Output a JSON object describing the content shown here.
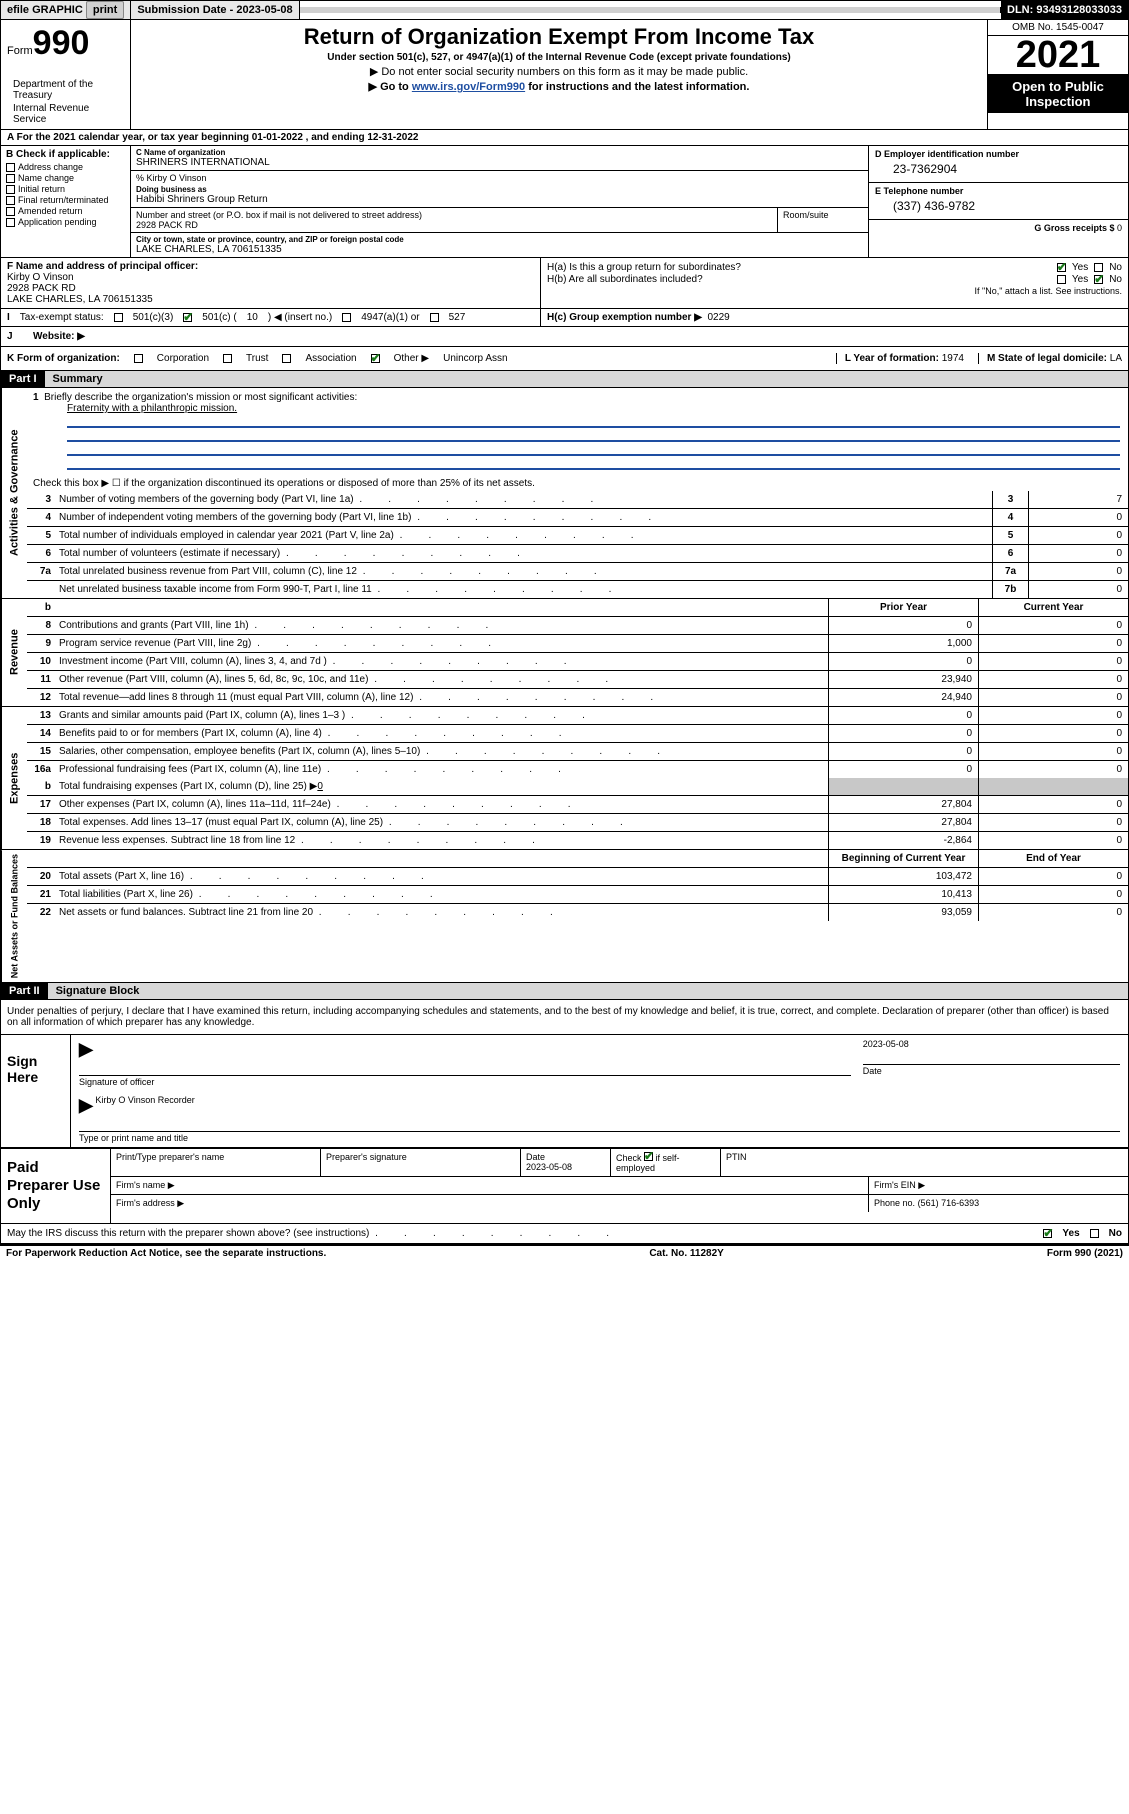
{
  "topbar": {
    "efile": "efile GRAPHIC",
    "print": "print",
    "sub_label": "Submission Date",
    "sub_date": "- 2023-05-08",
    "dln_label": "DLN:",
    "dln": "93493128033033"
  },
  "header": {
    "form_label": "Form",
    "form_no": "990",
    "title": "Return of Organization Exempt From Income Tax",
    "sub1": "Under section 501(c), 527, or 4947(a)(1) of the Internal Revenue Code (except private foundations)",
    "sub2": "▶ Do not enter social security numbers on this form as it may be made public.",
    "sub3_a": "▶ Go to ",
    "sub3_link": "www.irs.gov/Form990",
    "sub3_b": " for instructions and the latest information.",
    "omb": "OMB No. 1545-0047",
    "year": "2021",
    "oip": "Open to Public Inspection",
    "dept": "Department of the Treasury",
    "irs": "Internal Revenue Service"
  },
  "lineA": {
    "text_a": "A For the 2021 calendar year, or tax year beginning ",
    "begin": "01-01-2022",
    "text_b": " , and ending ",
    "end": "12-31-2022"
  },
  "colB": {
    "hdr": "B Check if applicable:",
    "opts": [
      "Address change",
      "Name change",
      "Initial return",
      "Final return/terminated",
      "Amended return",
      "Application pending"
    ]
  },
  "colC": {
    "name_lbl": "C Name of organization",
    "name": "SHRINERS INTERNATIONAL",
    "care_lbl": "% Kirby O Vinson",
    "dba_lbl": "Doing business as",
    "dba": "Habibi Shriners Group Return",
    "street_lbl": "Number and street (or P.O. box if mail is not delivered to street address)",
    "street": "2928 PACK RD",
    "room_lbl": "Room/suite",
    "city_lbl": "City or town, state or province, country, and ZIP or foreign postal code",
    "city": "LAKE CHARLES, LA   706151335"
  },
  "colD": {
    "ein_lbl": "D Employer identification number",
    "ein": "23-7362904",
    "tel_lbl": "E Telephone number",
    "tel": "(337) 436-9782",
    "gross_lbl": "G Gross receipts $",
    "gross": "0"
  },
  "rowF": {
    "lbl": "F Name and address of principal officer:",
    "name": "Kirby O Vinson",
    "street": "2928 PACK RD",
    "city": "LAKE CHARLES, LA   706151335"
  },
  "rowH": {
    "a": "H(a)  Is this a group return for subordinates?",
    "b": "H(b)  Are all subordinates included?",
    "note": "If \"No,\" attach a list. See instructions.",
    "c_lbl": "H(c)  Group exemption number ▶",
    "c_val": "0229"
  },
  "rowI": {
    "lbl": "Tax-exempt status:",
    "o1": "501(c)(3)",
    "o2a": "501(c) (",
    "o2b": "10",
    "o2c": ") ◀ (insert no.)",
    "o3": "4947(a)(1) or",
    "o4": "527"
  },
  "rowJ": {
    "lbl": "Website: ▶"
  },
  "rowK": {
    "lbl": "K Form of organization:",
    "opts": [
      "Corporation",
      "Trust",
      "Association",
      "Other ▶"
    ],
    "other_val": "Unincorp Assn",
    "L_lbl": "L Year of formation:",
    "L_val": "1974",
    "M_lbl": "M State of legal domicile:",
    "M_val": "LA"
  },
  "partI": {
    "hdr": "Part I",
    "title": "Summary"
  },
  "gov": {
    "label": "Activities & Governance",
    "q1_lbl": "Briefly describe the organization's mission or most significant activities:",
    "q1_text": "Fraternity with a philanthropic mission.",
    "q2": "Check this box ▶ ☐  if the organization discontinued its operations or disposed of more than 25% of its net assets.",
    "rows": [
      {
        "n": "3",
        "t": "Number of voting members of the governing body (Part VI, line 1a)",
        "b": "3",
        "v": "7"
      },
      {
        "n": "4",
        "t": "Number of independent voting members of the governing body (Part VI, line 1b)",
        "b": "4",
        "v": "0"
      },
      {
        "n": "5",
        "t": "Total number of individuals employed in calendar year 2021 (Part V, line 2a)",
        "b": "5",
        "v": "0"
      },
      {
        "n": "6",
        "t": "Total number of volunteers (estimate if necessary)",
        "b": "6",
        "v": "0"
      },
      {
        "n": "7a",
        "t": "Total unrelated business revenue from Part VIII, column (C), line 12",
        "b": "7a",
        "v": "0"
      },
      {
        "n": "",
        "t": "Net unrelated business taxable income from Form 990-T, Part I, line 11",
        "b": "7b",
        "v": "0"
      }
    ]
  },
  "rev": {
    "label": "Revenue",
    "col_b": "b",
    "col_prior": "Prior Year",
    "col_curr": "Current Year",
    "rows": [
      {
        "n": "8",
        "t": "Contributions and grants (Part VIII, line 1h)",
        "p": "0",
        "c": "0"
      },
      {
        "n": "9",
        "t": "Program service revenue (Part VIII, line 2g)",
        "p": "1,000",
        "c": "0"
      },
      {
        "n": "10",
        "t": "Investment income (Part VIII, column (A), lines 3, 4, and 7d )",
        "p": "0",
        "c": "0"
      },
      {
        "n": "11",
        "t": "Other revenue (Part VIII, column (A), lines 5, 6d, 8c, 9c, 10c, and 11e)",
        "p": "23,940",
        "c": "0"
      },
      {
        "n": "12",
        "t": "Total revenue—add lines 8 through 11 (must equal Part VIII, column (A), line 12)",
        "p": "24,940",
        "c": "0"
      }
    ]
  },
  "exp": {
    "label": "Expenses",
    "rows": [
      {
        "n": "13",
        "t": "Grants and similar amounts paid (Part IX, column (A), lines 1–3 )",
        "p": "0",
        "c": "0"
      },
      {
        "n": "14",
        "t": "Benefits paid to or for members (Part IX, column (A), line 4)",
        "p": "0",
        "c": "0"
      },
      {
        "n": "15",
        "t": "Salaries, other compensation, employee benefits (Part IX, column (A), lines 5–10)",
        "p": "0",
        "c": "0"
      },
      {
        "n": "16a",
        "t": "Professional fundraising fees (Part IX, column (A), line 11e)",
        "p": "0",
        "c": "0"
      }
    ],
    "row_b": {
      "n": "b",
      "t": "Total fundraising expenses (Part IX, column (D), line 25) ▶",
      "v": "0"
    },
    "rows2": [
      {
        "n": "17",
        "t": "Other expenses (Part IX, column (A), lines 11a–11d, 11f–24e)",
        "p": "27,804",
        "c": "0"
      },
      {
        "n": "18",
        "t": "Total expenses. Add lines 13–17 (must equal Part IX, column (A), line 25)",
        "p": "27,804",
        "c": "0"
      },
      {
        "n": "19",
        "t": "Revenue less expenses. Subtract line 18 from line 12",
        "p": "-2,864",
        "c": "0"
      }
    ]
  },
  "net": {
    "label": "Net Assets or Fund Balances",
    "col_begin": "Beginning of Current Year",
    "col_end": "End of Year",
    "rows": [
      {
        "n": "20",
        "t": "Total assets (Part X, line 16)",
        "p": "103,472",
        "c": "0"
      },
      {
        "n": "21",
        "t": "Total liabilities (Part X, line 26)",
        "p": "10,413",
        "c": "0"
      },
      {
        "n": "22",
        "t": "Net assets or fund balances. Subtract line 21 from line 20",
        "p": "93,059",
        "c": "0"
      }
    ]
  },
  "partII": {
    "hdr": "Part II",
    "title": "Signature Block",
    "decl": "Under penalties of perjury, I declare that I have examined this return, including accompanying schedules and statements, and to the best of my knowledge and belief, it is true, correct, and complete. Declaration of preparer (other than officer) is based on all information of which preparer has any knowledge."
  },
  "sign": {
    "here": "Sign Here",
    "sig_lbl": "Signature of officer",
    "date_lbl": "Date",
    "date": "2023-05-08",
    "name": "Kirby O Vinson  Recorder",
    "name_lbl": "Type or print name and title"
  },
  "paid": {
    "lbl": "Paid Preparer Use Only",
    "c1": "Print/Type preparer's name",
    "c2": "Preparer's signature",
    "c3": "Date",
    "c3v": "2023-05-08",
    "c4": "Check ☑ if self-employed",
    "c5": "PTIN",
    "firm_name": "Firm's name  ▶",
    "firm_ein": "Firm's EIN ▶",
    "firm_addr": "Firm's address ▶",
    "phone_lbl": "Phone no.",
    "phone": "(561) 716-6393"
  },
  "footer": {
    "q": "May the IRS discuss this return with the preparer shown above? (see instructions)",
    "pra": "For Paperwork Reduction Act Notice, see the separate instructions.",
    "cat": "Cat. No. 11282Y",
    "form": "Form 990 (2021)"
  },
  "yn": {
    "yes": "Yes",
    "no": "No"
  }
}
